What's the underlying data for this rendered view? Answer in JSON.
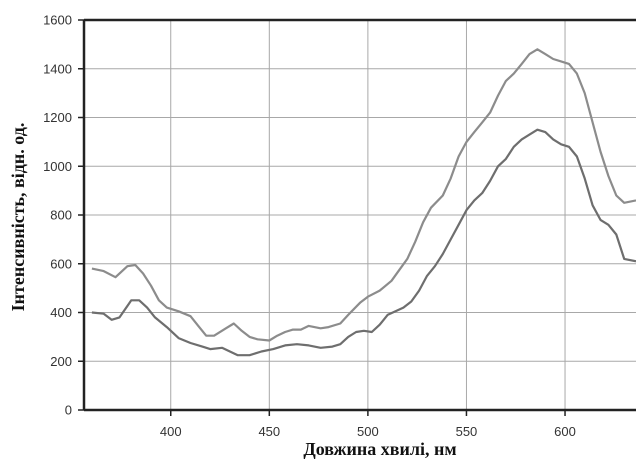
{
  "chart_data": {
    "type": "line",
    "xlabel": "Довжина хвилі, нм",
    "ylabel": "Інтенсивність, відн. од.",
    "xlim": [
      356,
      636
    ],
    "ylim": [
      0,
      1600
    ],
    "xticks": [
      400,
      450,
      500,
      550,
      600
    ],
    "yticks": [
      0,
      200,
      400,
      600,
      800,
      1000,
      1200,
      1400,
      1600
    ],
    "grid": true,
    "legend": "none",
    "series": [
      {
        "color": "#8c8c8c",
        "points": [
          [
            360,
            580
          ],
          [
            366,
            570
          ],
          [
            372,
            545
          ],
          [
            378,
            590
          ],
          [
            382,
            595
          ],
          [
            386,
            560
          ],
          [
            390,
            510
          ],
          [
            394,
            450
          ],
          [
            398,
            420
          ],
          [
            404,
            405
          ],
          [
            410,
            385
          ],
          [
            414,
            345
          ],
          [
            418,
            305
          ],
          [
            422,
            305
          ],
          [
            428,
            335
          ],
          [
            432,
            355
          ],
          [
            436,
            325
          ],
          [
            440,
            300
          ],
          [
            444,
            290
          ],
          [
            450,
            285
          ],
          [
            454,
            305
          ],
          [
            458,
            320
          ],
          [
            462,
            330
          ],
          [
            466,
            330
          ],
          [
            470,
            345
          ],
          [
            476,
            335
          ],
          [
            480,
            340
          ],
          [
            486,
            355
          ],
          [
            490,
            390
          ],
          [
            496,
            440
          ],
          [
            500,
            465
          ],
          [
            506,
            490
          ],
          [
            512,
            530
          ],
          [
            516,
            575
          ],
          [
            520,
            620
          ],
          [
            524,
            690
          ],
          [
            528,
            770
          ],
          [
            532,
            830
          ],
          [
            538,
            880
          ],
          [
            542,
            950
          ],
          [
            546,
            1040
          ],
          [
            550,
            1100
          ],
          [
            554,
            1140
          ],
          [
            558,
            1180
          ],
          [
            562,
            1220
          ],
          [
            566,
            1290
          ],
          [
            570,
            1350
          ],
          [
            574,
            1380
          ],
          [
            578,
            1420
          ],
          [
            582,
            1460
          ],
          [
            586,
            1480
          ],
          [
            590,
            1460
          ],
          [
            594,
            1440
          ],
          [
            598,
            1430
          ],
          [
            602,
            1420
          ],
          [
            606,
            1380
          ],
          [
            610,
            1300
          ],
          [
            614,
            1180
          ],
          [
            618,
            1060
          ],
          [
            622,
            960
          ],
          [
            626,
            880
          ],
          [
            630,
            850
          ],
          [
            636,
            860
          ]
        ]
      },
      {
        "color": "#6e6e6e",
        "points": [
          [
            360,
            400
          ],
          [
            366,
            395
          ],
          [
            370,
            370
          ],
          [
            374,
            380
          ],
          [
            380,
            450
          ],
          [
            384,
            450
          ],
          [
            388,
            420
          ],
          [
            392,
            380
          ],
          [
            398,
            340
          ],
          [
            404,
            295
          ],
          [
            410,
            275
          ],
          [
            416,
            260
          ],
          [
            420,
            250
          ],
          [
            426,
            255
          ],
          [
            430,
            240
          ],
          [
            434,
            225
          ],
          [
            440,
            225
          ],
          [
            446,
            240
          ],
          [
            452,
            250
          ],
          [
            458,
            265
          ],
          [
            464,
            270
          ],
          [
            470,
            265
          ],
          [
            476,
            255
          ],
          [
            482,
            260
          ],
          [
            486,
            270
          ],
          [
            490,
            300
          ],
          [
            494,
            320
          ],
          [
            498,
            325
          ],
          [
            502,
            320
          ],
          [
            506,
            350
          ],
          [
            510,
            390
          ],
          [
            514,
            405
          ],
          [
            518,
            420
          ],
          [
            522,
            445
          ],
          [
            526,
            490
          ],
          [
            530,
            550
          ],
          [
            534,
            590
          ],
          [
            538,
            640
          ],
          [
            542,
            700
          ],
          [
            546,
            760
          ],
          [
            550,
            820
          ],
          [
            554,
            860
          ],
          [
            558,
            890
          ],
          [
            562,
            940
          ],
          [
            566,
            1000
          ],
          [
            570,
            1030
          ],
          [
            574,
            1080
          ],
          [
            578,
            1110
          ],
          [
            582,
            1130
          ],
          [
            586,
            1150
          ],
          [
            590,
            1140
          ],
          [
            594,
            1110
          ],
          [
            598,
            1090
          ],
          [
            602,
            1080
          ],
          [
            606,
            1040
          ],
          [
            610,
            950
          ],
          [
            614,
            840
          ],
          [
            618,
            780
          ],
          [
            622,
            760
          ],
          [
            626,
            720
          ],
          [
            630,
            620
          ],
          [
            636,
            610
          ]
        ]
      }
    ]
  }
}
